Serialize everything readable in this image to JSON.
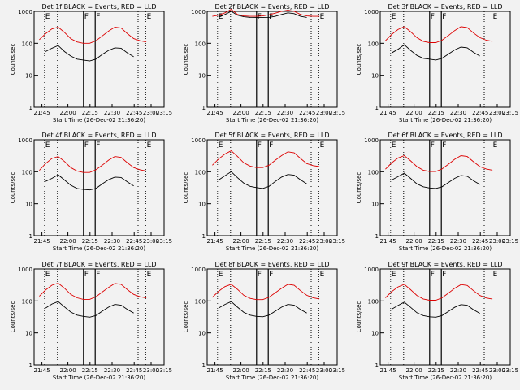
{
  "colors": {
    "events": "#000000",
    "lld": "#dd0000",
    "axes": "#000000",
    "background": "#f2f2f2"
  },
  "shared": {
    "ylabel": "Counts/sec",
    "xlabel": "Start Time (26-Dec-02 21:36:20)",
    "yticks": [
      "1",
      "10",
      "100",
      "1000"
    ],
    "xticks": [
      "21:45",
      "22:00",
      "22:15",
      "22:30",
      "22:45",
      "23:00",
      "23:15"
    ],
    "markers": [
      "E",
      "F",
      "F",
      "E"
    ],
    "scale": "log",
    "ylim": [
      1,
      1000
    ]
  },
  "chart_data": [
    {
      "type": "line",
      "title": "Det 1f BLACK = Events, RED = LLD",
      "xlim": [
        21.65,
        23.25
      ],
      "x_minutes": [
        0,
        5,
        10,
        15,
        20,
        25,
        30,
        35,
        40,
        45,
        50,
        55,
        60,
        65,
        70,
        75,
        80,
        85,
        90,
        95
      ],
      "series": [
        {
          "name": "Events",
          "values": [
            null,
            55,
            70,
            85,
            55,
            40,
            32,
            30,
            28,
            32,
            45,
            60,
            72,
            70,
            50,
            38,
            null,
            null,
            null,
            null
          ]
        },
        {
          "name": "LLD",
          "values": [
            130,
            200,
            280,
            320,
            220,
            140,
            110,
            100,
            100,
            120,
            170,
            240,
            320,
            300,
            200,
            140,
            120,
            110,
            null,
            null
          ]
        }
      ]
    },
    {
      "type": "line",
      "title": "Det 2f BLACK = Events, RED = LLD",
      "xlim": [
        21.65,
        23.25
      ],
      "x_minutes": [
        0,
        5,
        10,
        15,
        20,
        25,
        30,
        35,
        40,
        45,
        50,
        55,
        60,
        65,
        70,
        75,
        80,
        85,
        90,
        95
      ],
      "series": [
        {
          "name": "Events",
          "values": [
            null,
            650,
            800,
            1000,
            760,
            680,
            650,
            640,
            640,
            650,
            700,
            800,
            900,
            850,
            700,
            650,
            null,
            null,
            null,
            null
          ]
        },
        {
          "name": "LLD",
          "values": [
            700,
            760,
            900,
            1150,
            800,
            720,
            700,
            700,
            720,
            780,
            880,
            1000,
            1100,
            1000,
            800,
            720,
            700,
            700,
            null,
            null
          ]
        }
      ]
    },
    {
      "type": "line",
      "title": "Det 3f BLACK = Events, RED = LLD",
      "xlim": [
        21.65,
        23.25
      ],
      "x_minutes": [
        0,
        5,
        10,
        15,
        20,
        25,
        30,
        35,
        40,
        45,
        50,
        55,
        60,
        65,
        70,
        75,
        80,
        85,
        90,
        95
      ],
      "series": [
        {
          "name": "Events",
          "values": [
            null,
            50,
            65,
            90,
            60,
            42,
            34,
            32,
            30,
            34,
            46,
            62,
            76,
            72,
            52,
            40,
            null,
            null,
            null,
            null
          ]
        },
        {
          "name": "LLD",
          "values": [
            120,
            190,
            270,
            330,
            230,
            150,
            115,
            105,
            105,
            125,
            175,
            250,
            330,
            310,
            210,
            150,
            125,
            115,
            null,
            null
          ]
        }
      ]
    },
    {
      "type": "line",
      "title": "Det 4f BLACK = Events, RED = LLD",
      "xlim": [
        21.65,
        23.25
      ],
      "x_minutes": [
        0,
        5,
        10,
        15,
        20,
        25,
        30,
        35,
        40,
        45,
        50,
        55,
        60,
        65,
        70,
        75,
        80,
        85,
        90,
        95
      ],
      "series": [
        {
          "name": "Events",
          "values": [
            null,
            50,
            62,
            80,
            55,
            38,
            30,
            28,
            27,
            30,
            42,
            56,
            68,
            66,
            48,
            36,
            null,
            null,
            null,
            null
          ]
        },
        {
          "name": "LLD",
          "values": [
            110,
            180,
            260,
            300,
            210,
            135,
            105,
            95,
            95,
            115,
            160,
            230,
            300,
            280,
            190,
            135,
            115,
            105,
            null,
            null
          ]
        }
      ]
    },
    {
      "type": "line",
      "title": "Det 5f BLACK = Events, RED = LLD",
      "xlim": [
        21.65,
        23.25
      ],
      "x_minutes": [
        0,
        5,
        10,
        15,
        20,
        25,
        30,
        35,
        40,
        45,
        50,
        55,
        60,
        65,
        70,
        75,
        80,
        85,
        90,
        95
      ],
      "series": [
        {
          "name": "Events",
          "values": [
            null,
            55,
            75,
            100,
            65,
            44,
            35,
            32,
            30,
            35,
            50,
            68,
            82,
            78,
            56,
            42,
            null,
            null,
            null,
            null
          ]
        },
        {
          "name": "LLD",
          "values": [
            160,
            250,
            360,
            450,
            300,
            190,
            150,
            135,
            135,
            160,
            230,
            320,
            420,
            390,
            260,
            180,
            155,
            145,
            null,
            null
          ]
        }
      ]
    },
    {
      "type": "line",
      "title": "Det 6f BLACK = Events, RED = LLD",
      "xlim": [
        21.65,
        23.25
      ],
      "x_minutes": [
        0,
        5,
        10,
        15,
        20,
        25,
        30,
        35,
        40,
        45,
        50,
        55,
        60,
        65,
        70,
        75,
        80,
        85,
        90,
        95
      ],
      "series": [
        {
          "name": "Events",
          "values": [
            null,
            55,
            70,
            90,
            62,
            42,
            34,
            31,
            30,
            34,
            46,
            62,
            76,
            72,
            52,
            40,
            null,
            null,
            null,
            null
          ]
        },
        {
          "name": "LLD",
          "values": [
            120,
            190,
            270,
            320,
            220,
            145,
            112,
            102,
            102,
            122,
            172,
            245,
            320,
            300,
            205,
            145,
            122,
            112,
            null,
            null
          ]
        }
      ]
    },
    {
      "type": "line",
      "title": "Det 7f BLACK = Events, RED = LLD",
      "xlim": [
        21.65,
        23.25
      ],
      "x_minutes": [
        0,
        5,
        10,
        15,
        20,
        25,
        30,
        35,
        40,
        45,
        50,
        55,
        60,
        65,
        70,
        75,
        80,
        85,
        90,
        95
      ],
      "series": [
        {
          "name": "Events",
          "values": [
            null,
            60,
            80,
            95,
            65,
            45,
            36,
            33,
            31,
            35,
            48,
            64,
            78,
            74,
            54,
            42,
            null,
            null,
            null,
            null
          ]
        },
        {
          "name": "LLD",
          "values": [
            140,
            220,
            310,
            360,
            250,
            160,
            125,
            112,
            112,
            135,
            190,
            265,
            350,
            330,
            225,
            160,
            135,
            125,
            null,
            null
          ]
        }
      ]
    },
    {
      "type": "line",
      "title": "Det 8f BLACK = Events, RED = LLD",
      "xlim": [
        21.65,
        23.25
      ],
      "x_minutes": [
        0,
        5,
        10,
        15,
        20,
        25,
        30,
        35,
        40,
        45,
        50,
        55,
        60,
        65,
        70,
        75,
        80,
        85,
        90,
        95
      ],
      "series": [
        {
          "name": "Events",
          "values": [
            null,
            60,
            78,
            95,
            64,
            44,
            36,
            33,
            32,
            36,
            48,
            64,
            78,
            74,
            54,
            42,
            null,
            null,
            null,
            null
          ]
        },
        {
          "name": "LLD",
          "values": [
            130,
            200,
            280,
            330,
            230,
            150,
            120,
            110,
            110,
            130,
            180,
            250,
            330,
            310,
            210,
            150,
            125,
            115,
            null,
            null
          ]
        }
      ]
    },
    {
      "type": "line",
      "title": "Det 9f BLACK = Events, RED = LLD",
      "xlim": [
        21.65,
        23.25
      ],
      "x_minutes": [
        0,
        5,
        10,
        15,
        20,
        25,
        30,
        35,
        40,
        45,
        50,
        55,
        60,
        65,
        70,
        75,
        80,
        85,
        90,
        95
      ],
      "series": [
        {
          "name": "Events",
          "values": [
            null,
            55,
            72,
            92,
            63,
            43,
            35,
            32,
            31,
            35,
            47,
            63,
            77,
            73,
            53,
            41,
            null,
            null,
            null,
            null
          ]
        },
        {
          "name": "LLD",
          "values": [
            125,
            195,
            275,
            330,
            225,
            148,
            115,
            105,
            105,
            125,
            175,
            248,
            325,
            305,
            208,
            148,
            124,
            114,
            null,
            null
          ]
        }
      ]
    }
  ]
}
